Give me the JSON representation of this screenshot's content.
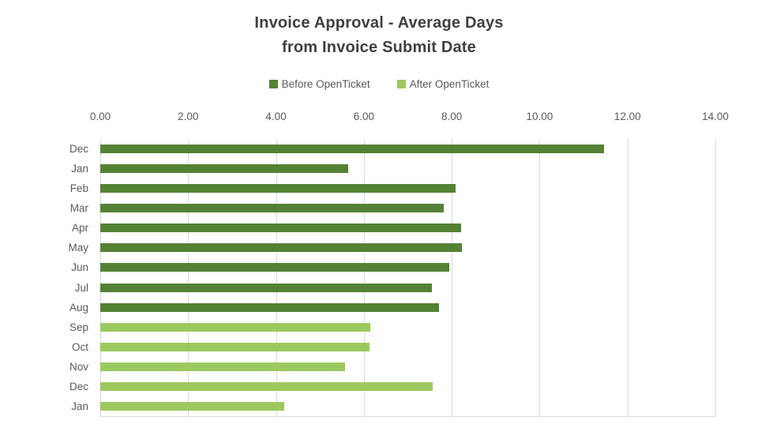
{
  "chart_data": {
    "type": "bar",
    "orientation": "horizontal",
    "title": "Invoice Approval - Average Days from Invoice Submit Date",
    "title_line1": "Invoice Approval - Average Days",
    "title_line2": "from Invoice Submit Date",
    "categories": [
      "Dec",
      "Jan",
      "Feb",
      "Mar",
      "Apr",
      "May",
      "Jun",
      "Jul",
      "Aug",
      "Sep",
      "Oct",
      "Nov",
      "Dec",
      "Jan"
    ],
    "series": [
      {
        "name": "Before OpenTicket",
        "color": "#548235",
        "values": [
          11.47,
          5.64,
          8.09,
          7.82,
          8.21,
          8.24,
          7.94,
          7.54,
          7.71,
          null,
          null,
          null,
          null,
          null
        ]
      },
      {
        "name": "After OpenTicket",
        "color": "#9CC95F",
        "values": [
          null,
          null,
          null,
          null,
          null,
          null,
          null,
          null,
          null,
          6.15,
          6.13,
          5.57,
          7.56,
          4.19
        ]
      }
    ],
    "xlim": [
      0,
      14
    ],
    "x_ticks": [
      0,
      2,
      4,
      6,
      8,
      10,
      12,
      14
    ],
    "x_tick_labels": [
      "0.00",
      "2.00",
      "4.00",
      "6.00",
      "8.00",
      "10.00",
      "12.00",
      "14.00"
    ],
    "xlabel": "",
    "ylabel": "",
    "grid": true,
    "legend_position": "top",
    "colors": {
      "title_text": "#404040",
      "axis_text": "#595959",
      "gridline": "#d9d9d9"
    }
  }
}
